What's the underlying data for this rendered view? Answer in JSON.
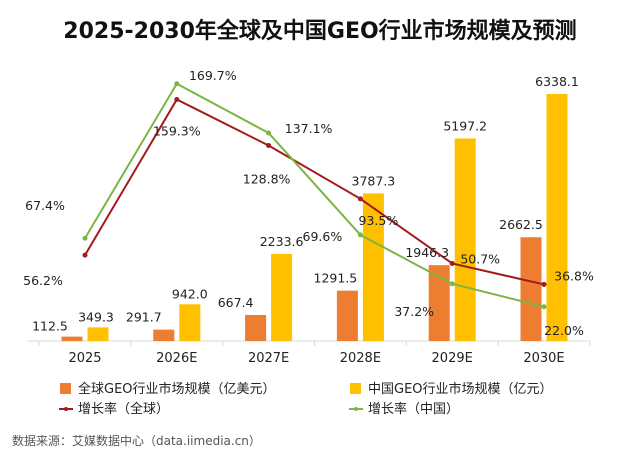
{
  "chart_data": {
    "type": "bar",
    "title": "2025-2030年全球及中国GEO行业市场规模及预测",
    "categories": [
      "2025",
      "2026E",
      "2027E",
      "2028E",
      "2029E",
      "2030E"
    ],
    "series": [
      {
        "name": "全球GEO行业市场规模（亿美元）",
        "kind": "bar",
        "color": "#ED7D31",
        "values": [
          112.5,
          291.7,
          667.4,
          1291.5,
          1946.3,
          2662.5
        ],
        "labels": [
          "112.5",
          "291.7",
          "667.4",
          "1291.5",
          "1946.3",
          "2662.5"
        ]
      },
      {
        "name": "中国GEO行业市场规模（亿元）",
        "kind": "bar",
        "color": "#FFC000",
        "values": [
          349.3,
          942.0,
          2233.6,
          3787.3,
          5197.2,
          6338.1
        ],
        "labels": [
          "349.3",
          "942.0",
          "2233.6",
          "3787.3",
          "5197.2",
          "6338.1"
        ]
      },
      {
        "name": "增长率（全球）",
        "kind": "line",
        "color": "#A31A1A",
        "values": [
          56.2,
          159.3,
          128.8,
          93.5,
          50.7,
          36.8
        ],
        "labels": [
          "56.2%",
          "159.3%",
          "128.8%",
          "93.5%",
          "50.7%",
          "36.8%"
        ]
      },
      {
        "name": "增长率（中国）",
        "kind": "line",
        "color": "#7DB544",
        "values": [
          67.4,
          169.7,
          137.1,
          69.6,
          37.2,
          22.0
        ],
        "labels": [
          "67.4%",
          "169.7%",
          "137.1%",
          "69.6%",
          "37.2%",
          "22.0%"
        ]
      }
    ],
    "xlabel": "",
    "ylabel": "",
    "ylim_bars": [
      0,
      6338.1
    ],
    "ylim_lines_percent": [
      0,
      169.7
    ],
    "grid": false,
    "legend_position": "bottom",
    "source": "数据来源：艾媒数据中心（data.iimedia.cn）"
  }
}
